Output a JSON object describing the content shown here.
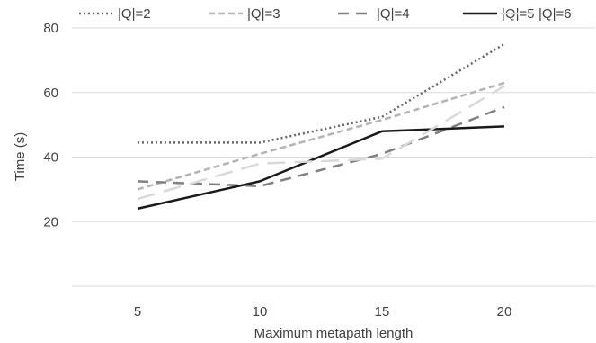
{
  "chart_data": {
    "type": "line",
    "title": "",
    "xlabel": "Maximum metapath length",
    "ylabel": "Time (s)",
    "categories": [
      "5",
      "10",
      "15",
      "20"
    ],
    "yticks": [
      "20",
      "40",
      "60",
      "80"
    ],
    "ylim": [
      0,
      80
    ],
    "grid": true,
    "legend_position": "top",
    "series": [
      {
        "name": "|Q|=2",
        "values": [
          44.5,
          44.5,
          52.5,
          75
        ],
        "color": "#666666",
        "style": "dotted"
      },
      {
        "name": "|Q|=3",
        "values": [
          30,
          41,
          51.5,
          63
        ],
        "color": "#b3b3b3",
        "style": "dashed"
      },
      {
        "name": "|Q|=4",
        "values": [
          32.5,
          31,
          41,
          55.5
        ],
        "color": "#808080",
        "style": "long-dashed"
      },
      {
        "name": "|Q|=5",
        "values": [
          24,
          32.5,
          48,
          49.5
        ],
        "color": "#1a1a1a",
        "style": "solid"
      },
      {
        "name": "|Q|=6",
        "values": [
          27,
          38,
          39.5,
          62
        ],
        "color": "#d9d9d9",
        "style": "long-dash"
      }
    ]
  }
}
